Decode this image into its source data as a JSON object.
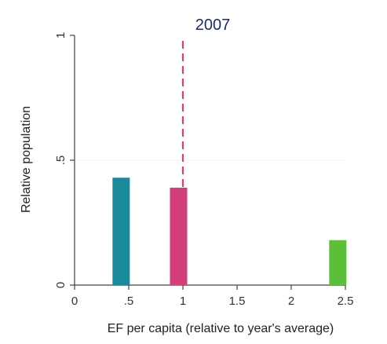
{
  "chart_data": {
    "type": "bar",
    "title": "2007",
    "xlabel": "EF per capita (relative to year's average)",
    "ylabel": "Relative population",
    "xlim": [
      0,
      2.5
    ],
    "ylim": [
      0,
      1
    ],
    "x_ticks": [
      {
        "value": 0,
        "label": "0"
      },
      {
        "value": 0.5,
        "label": ".5"
      },
      {
        "value": 1,
        "label": "1"
      },
      {
        "value": 1.5,
        "label": "1.5"
      },
      {
        "value": 2,
        "label": "2"
      },
      {
        "value": 2.5,
        "label": "2.5"
      }
    ],
    "y_ticks": [
      {
        "value": 0,
        "label": "0"
      },
      {
        "value": 0.5,
        "label": ".5"
      },
      {
        "value": 1,
        "label": "1"
      }
    ],
    "bars": [
      {
        "x": 0.43,
        "value": 0.43,
        "color": "#1a8a9a"
      },
      {
        "x": 0.96,
        "value": 0.39,
        "color": "#d43f7a"
      },
      {
        "x": 2.43,
        "value": 0.18,
        "color": "#5cbf3a"
      }
    ],
    "reference_line": {
      "x": 1,
      "style": "dashed",
      "color": "#d43f7a"
    },
    "grid": "horizontal-at-0.5"
  }
}
